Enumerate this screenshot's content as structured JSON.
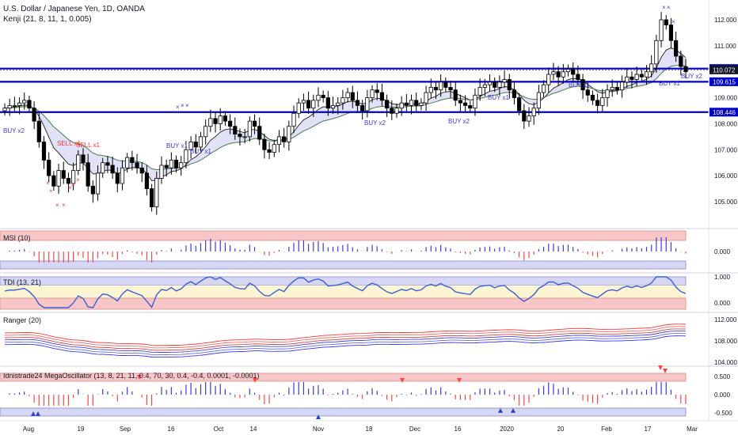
{
  "header": {
    "title": "U.S. Dollar / Japanese Yen, 1D, OANDA",
    "indicator": "Kenji (21, 8, 11, 1, 0.005)"
  },
  "colors": {
    "up": "#ffffff",
    "down": "#000000",
    "hline": "#0000cc",
    "buy": "#3b3bdf",
    "sell": "#ff3333",
    "band": "#c9c9f2",
    "pink": "#f7c7c7",
    "blue_zone": "#d6d6f5"
  },
  "price_levels": [
    {
      "value": "110.123",
      "style": "blue"
    },
    {
      "value": "110.072",
      "style": "dark"
    },
    {
      "value": "109.615",
      "style": "blue"
    },
    {
      "value": "108.446",
      "style": "blue"
    }
  ],
  "price_axis": [
    "112.000",
    "111.000",
    "109.000",
    "108.000",
    "107.000",
    "106.000",
    "105.000"
  ],
  "time_axis": [
    "Aug",
    "19",
    "Sep",
    "16",
    "Oct",
    "14",
    "Nov",
    "18",
    "Dec",
    "16",
    "2020",
    "20",
    "Feb",
    "17",
    "Mar"
  ],
  "signals": {
    "buy": [
      "BUY x2",
      "BUY x1",
      "BUY x1",
      "BUY x2",
      "BUY x2",
      "BUY x1",
      "BUY x1",
      "BUY x1",
      "BUY x2"
    ],
    "sell": [
      "SELL x1",
      "SELL x1"
    ]
  },
  "panes": [
    {
      "name": "MSI (10)",
      "axis": [
        "0.000"
      ]
    },
    {
      "name": "TDI (13, 21)",
      "axis": [
        "1.000",
        "0.000"
      ]
    },
    {
      "name": "Ranger (20)",
      "axis": [
        "112.000",
        "108.000",
        "104.000"
      ]
    },
    {
      "name": "Idnistrade24 MegaOscillator (13, 8, 21, 11, 0.4, 70, 30, 0.4, -0.4, 0.0001, -0.0001)",
      "axis": [
        "0.500",
        "0.000",
        "-0.500"
      ]
    }
  ],
  "chart_data": {
    "type": "candlestick",
    "symbol": "U.S. Dollar / Japanese Yen",
    "interval": "1D",
    "ylim": [
      104.4,
      112.4
    ],
    "time_ticks": [
      "Aug",
      "19",
      "Sep",
      "16",
      "Oct",
      "14",
      "Nov",
      "18",
      "Dec",
      "16",
      "2020",
      "20",
      "Feb",
      "17",
      "Mar"
    ],
    "close_approx": [
      108.6,
      108.7,
      108.7,
      108.8,
      108.9,
      108.6,
      108.1,
      107.3,
      106.6,
      106.0,
      105.6,
      106.2,
      105.9,
      105.7,
      106.2,
      106.8,
      106.5,
      105.6,
      105.3,
      106.1,
      106.5,
      106.4,
      106.1,
      105.7,
      106.3,
      106.7,
      106.5,
      106.3,
      106.1,
      105.5,
      104.8,
      105.9,
      106.4,
      106.3,
      106.6,
      106.3,
      106.5,
      107.0,
      107.3,
      107.1,
      107.5,
      107.9,
      108.2,
      108.0,
      108.3,
      108.1,
      107.9,
      107.6,
      107.5,
      107.5,
      108.1,
      107.9,
      107.4,
      107.0,
      106.9,
      107.2,
      107.5,
      107.3,
      107.9,
      108.4,
      108.8,
      108.9,
      108.6,
      108.9,
      109.1,
      109.0,
      108.6,
      108.7,
      108.8,
      109.0,
      109.2,
      108.9,
      108.7,
      108.5,
      109.0,
      109.3,
      109.2,
      108.9,
      108.6,
      108.4,
      108.6,
      108.8,
      108.7,
      108.9,
      108.7,
      108.8,
      109.2,
      109.4,
      109.3,
      109.6,
      109.4,
      109.3,
      108.9,
      108.8,
      108.7,
      108.6,
      109.1,
      109.4,
      109.5,
      109.6,
      109.4,
      109.6,
      109.7,
      109.3,
      109.0,
      108.5,
      108.1,
      108.3,
      108.6,
      109.2,
      109.5,
      109.9,
      110.0,
      109.8,
      110.0,
      110.1,
      109.9,
      109.7,
      109.3,
      109.1,
      108.9,
      108.7,
      109.0,
      109.3,
      109.4,
      109.3,
      109.6,
      109.8,
      109.7,
      109.9,
      109.8,
      110.0,
      110.3,
      111.2,
      112.0,
      111.8,
      111.2,
      110.6,
      110.2,
      110.0
    ]
  }
}
